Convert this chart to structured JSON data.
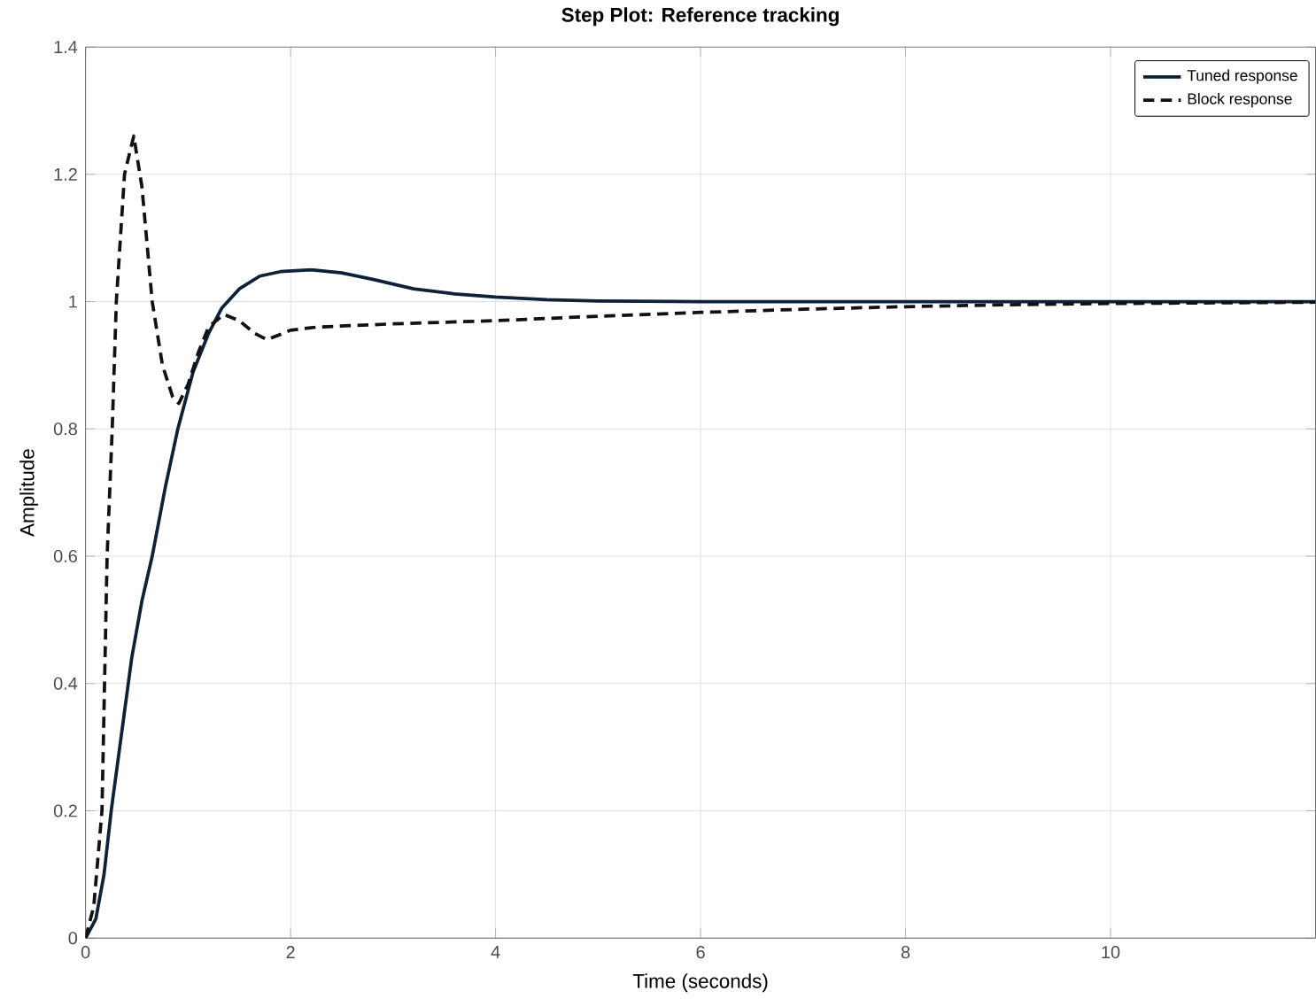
{
  "chart_data": {
    "type": "line",
    "title": "Step Plot: Reference tracking",
    "xlabel": "Time (seconds)",
    "ylabel": "Amplitude",
    "xlim": [
      0,
      12
    ],
    "ylim": [
      0,
      1.4
    ],
    "xticks": [
      0,
      2,
      4,
      6,
      8,
      10
    ],
    "yticks": [
      0,
      0.2,
      0.4,
      0.6,
      0.8,
      1,
      1.2,
      1.4
    ],
    "grid": true,
    "legend": "top right",
    "series": [
      {
        "name": "Tuned response",
        "color": "#0d2137",
        "line_style": "solid",
        "x": [
          0,
          0.1,
          0.18,
          0.25,
          0.35,
          0.45,
          0.55,
          0.65,
          0.78,
          0.9,
          1.05,
          1.2,
          1.33,
          1.5,
          1.7,
          1.9,
          2.2,
          2.5,
          2.8,
          3.2,
          3.6,
          4,
          4.5,
          5,
          6,
          7,
          8,
          9,
          10,
          11,
          12
        ],
        "values": [
          0,
          0.03,
          0.1,
          0.2,
          0.32,
          0.44,
          0.53,
          0.6,
          0.71,
          0.8,
          0.89,
          0.95,
          0.99,
          1.02,
          1.04,
          1.047,
          1.05,
          1.045,
          1.035,
          1.02,
          1.012,
          1.007,
          1.003,
          1.001,
          1,
          1,
          1,
          1,
          1,
          1,
          1
        ]
      },
      {
        "name": "Block response",
        "color": "#111111",
        "line_style": "dashed",
        "x": [
          0,
          0.08,
          0.16,
          0.21,
          0.26,
          0.3,
          0.38,
          0.47,
          0.55,
          0.65,
          0.75,
          0.85,
          0.91,
          1.0,
          1.1,
          1.2,
          1.35,
          1.5,
          1.65,
          1.77,
          2.0,
          2.26,
          3,
          4,
          5,
          6,
          7,
          8,
          9,
          10,
          11,
          12
        ],
        "values": [
          0,
          0.05,
          0.2,
          0.6,
          0.8,
          1.0,
          1.2,
          1.26,
          1.18,
          1.0,
          0.9,
          0.85,
          0.84,
          0.87,
          0.92,
          0.96,
          0.98,
          0.97,
          0.95,
          0.94,
          0.955,
          0.96,
          0.965,
          0.97,
          0.977,
          0.983,
          0.988,
          0.992,
          0.995,
          0.997,
          0.998,
          0.999
        ]
      }
    ]
  }
}
